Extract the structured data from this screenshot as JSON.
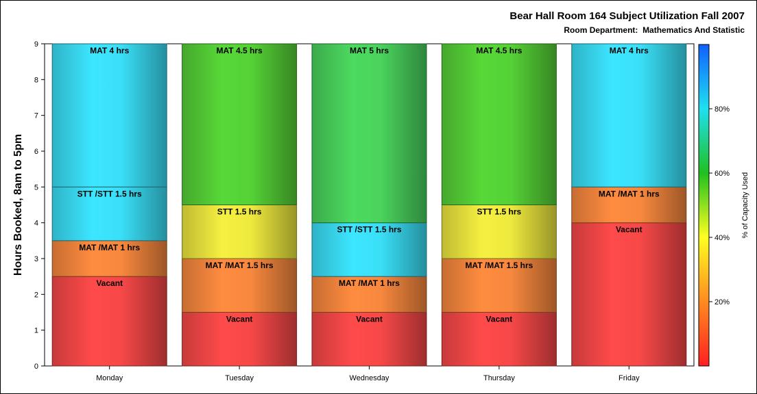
{
  "title": "Bear Hall Room 164 Subject Utilization Fall 2007",
  "subtitle": "Room Department:  Mathematics And Statistic",
  "chart_data": {
    "type": "bar",
    "stacked": true,
    "categories": [
      "Monday",
      "Tuesday",
      "Wednesday",
      "Thursday",
      "Friday"
    ],
    "ylabel": "Hours Booked, 8am to 5pm",
    "ylim": [
      0,
      9
    ],
    "yticks": [
      0,
      1,
      2,
      3,
      4,
      5,
      6,
      7,
      8,
      9
    ],
    "bars": [
      {
        "category": "Monday",
        "segments": [
          {
            "label": "Vacant",
            "value": 2.5,
            "capacity_pct": 0
          },
          {
            "label": "MAT /MAT 1 hrs",
            "value": 1,
            "capacity_pct": 30
          },
          {
            "label": "STT /STT 1.5 hrs",
            "value": 1.5,
            "capacity_pct": 80
          },
          {
            "label": "MAT 4 hrs",
            "value": 4,
            "capacity_pct": 80
          }
        ]
      },
      {
        "category": "Tuesday",
        "segments": [
          {
            "label": "Vacant",
            "value": 1.5,
            "capacity_pct": 0
          },
          {
            "label": "MAT /MAT 1.5 hrs",
            "value": 1.5,
            "capacity_pct": 30
          },
          {
            "label": "STT 1.5 hrs",
            "value": 1.5,
            "capacity_pct": 45
          },
          {
            "label": "MAT 4.5 hrs",
            "value": 4.5,
            "capacity_pct": 60
          }
        ]
      },
      {
        "category": "Wednesday",
        "segments": [
          {
            "label": "Vacant",
            "value": 1.5,
            "capacity_pct": 0
          },
          {
            "label": "MAT /MAT 1 hrs",
            "value": 1,
            "capacity_pct": 30
          },
          {
            "label": "STT /STT 1.5 hrs",
            "value": 1.5,
            "capacity_pct": 80
          },
          {
            "label": "MAT 5 hrs",
            "value": 5,
            "capacity_pct": 65
          }
        ]
      },
      {
        "category": "Thursday",
        "segments": [
          {
            "label": "Vacant",
            "value": 1.5,
            "capacity_pct": 0
          },
          {
            "label": "MAT /MAT 1.5 hrs",
            "value": 1.5,
            "capacity_pct": 30
          },
          {
            "label": "STT 1.5 hrs",
            "value": 1.5,
            "capacity_pct": 45
          },
          {
            "label": "MAT 4.5 hrs",
            "value": 4.5,
            "capacity_pct": 60
          }
        ]
      },
      {
        "category": "Friday",
        "segments": [
          {
            "label": "Vacant",
            "value": 4,
            "capacity_pct": 0
          },
          {
            "label": "MAT /MAT 1 hrs",
            "value": 1,
            "capacity_pct": 30
          },
          {
            "label": "MAT 4 hrs",
            "value": 4,
            "capacity_pct": 80
          }
        ]
      }
    ],
    "colorbar": {
      "label": "% of Capacity Used",
      "ticks": [
        "20%",
        "40%",
        "60%",
        "80%"
      ],
      "tick_values": [
        20,
        40,
        60,
        80
      ],
      "range": [
        0,
        100
      ],
      "colors": [
        "#ff2020",
        "#ff8a20",
        "#ffff20",
        "#20c020",
        "#20e0f0",
        "#1060ff"
      ]
    },
    "segment_colors": {
      "0": "#ff4a4a",
      "30": "#ff8c40",
      "45": "#f5f040",
      "60": "#58d838",
      "65": "#4cda60",
      "80": "#3ce6ff"
    },
    "grid": false,
    "legend": "colorbar-right"
  }
}
